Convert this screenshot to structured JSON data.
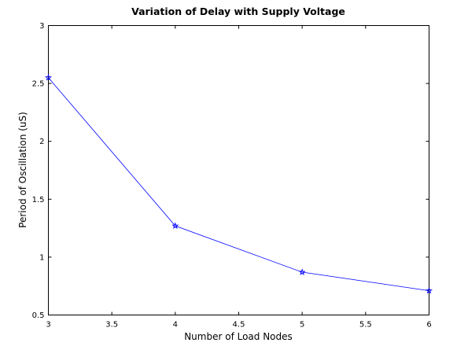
{
  "chart_data": {
    "type": "line",
    "title": "Variation of Delay with Supply Voltage",
    "xlabel": "Number of Load Nodes",
    "ylabel": "Period of Oscillation (uS)",
    "xlim": [
      3,
      6
    ],
    "ylim": [
      0.5,
      3
    ],
    "xticks": [
      "3",
      "3.5",
      "4",
      "4.5",
      "5",
      "5.5",
      "6"
    ],
    "yticks": [
      "0.5",
      "1",
      "1.5",
      "2",
      "2.5",
      "3"
    ],
    "grid": false,
    "legend": "none",
    "series": [
      {
        "color": "#0000ff",
        "marker": "star",
        "x": [
          3,
          4,
          5,
          6
        ],
        "y": [
          2.55,
          1.27,
          0.87,
          0.71
        ]
      }
    ]
  }
}
